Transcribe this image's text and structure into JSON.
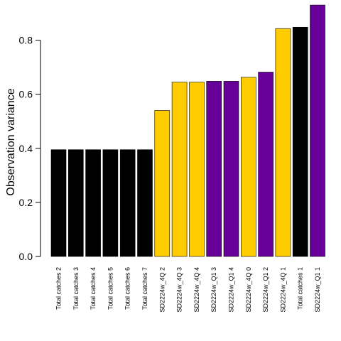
{
  "chart_data": {
    "type": "bar",
    "ylabel": "Observation variance",
    "ylim": [
      0,
      0.93
    ],
    "yticks": [
      0.0,
      0.2,
      0.4,
      0.6,
      0.8
    ],
    "ytick_labels": [
      "0.0",
      "0.2",
      "0.4",
      "0.6",
      "0.8"
    ],
    "grid": false,
    "categories": [
      "Total catches 2",
      "Total catches 3",
      "Total catches 4",
      "Total catches 5",
      "Total catches 6",
      "Total catches 7",
      "SD2224w_4Q 2",
      "SD2224w_4Q 3",
      "SD2224w_4Q 4",
      "SD2224w_Q1 3",
      "SD2224w_Q1 4",
      "SD2224w_4Q 0",
      "SD2224w_Q1 2",
      "SD2224w_4Q 1",
      "Total catches 1",
      "SD2224w_Q1 1"
    ],
    "values": [
      0.395,
      0.395,
      0.395,
      0.395,
      0.395,
      0.395,
      0.54,
      0.645,
      0.645,
      0.648,
      0.648,
      0.663,
      0.682,
      0.843,
      0.848,
      0.93
    ],
    "colors": [
      "#000000",
      "#000000",
      "#000000",
      "#000000",
      "#000000",
      "#000000",
      "#FFCC00",
      "#FFCC00",
      "#FFCC00",
      "#660099",
      "#660099",
      "#FFCC00",
      "#660099",
      "#FFCC00",
      "#000000",
      "#660099"
    ]
  }
}
